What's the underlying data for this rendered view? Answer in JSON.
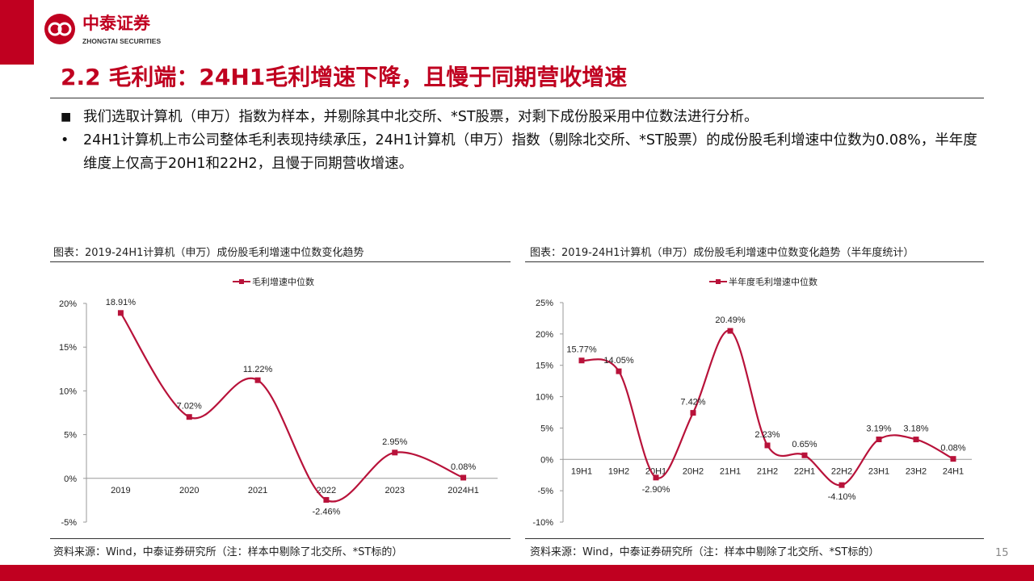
{
  "header": {
    "logo_cn": "中泰证券",
    "logo_en": "ZHONGTAI SECURITIES",
    "title": "2.2 毛利端：24H1毛利增速下降，且慢于同期营收增速"
  },
  "bullets": [
    "我们选取计算机（申万）指数为样本，并剔除其中北交所、*ST股票，对剩下成份股采用中位数法进行分析。",
    "24H1计算机上市公司整体毛利表现持续承压，24H1计算机（申万）指数（剔除北交所、*ST股票）的成份股毛利增速中位数为0.08%，半年度维度上仅高于20H1和22H2，且慢于同期营收增速。"
  ],
  "chart_data": [
    {
      "type": "line",
      "caption": "图表：2019-24H1计算机（申万）成份股毛利增速中位数变化趋势",
      "categories": [
        "2019",
        "2020",
        "2021",
        "2022",
        "2023",
        "2024H1"
      ],
      "series": [
        {
          "name": "毛利增速中位数",
          "color": "#b8123a",
          "values": [
            18.91,
            7.02,
            11.22,
            -2.46,
            2.95,
            0.08
          ],
          "value_labels": [
            "18.91%",
            "7.02%",
            "11.22%",
            "-2.46%",
            "2.95%",
            "0.08%"
          ]
        }
      ],
      "ylim": [
        -5,
        20
      ],
      "yticks": [
        {
          "value": -5,
          "label": "-5%"
        },
        {
          "value": 0,
          "label": "0%"
        },
        {
          "value": 5,
          "label": "5%"
        },
        {
          "value": 10,
          "label": "10%"
        },
        {
          "value": 15,
          "label": "15%"
        },
        {
          "value": 20,
          "label": "20%"
        }
      ],
      "source": "资料来源：Wind，中泰证券研究所（注：样本中剔除了北交所、*ST标的）"
    },
    {
      "type": "line",
      "caption": "图表：2019-24H1计算机（申万）成份股毛利增速中位数变化趋势（半年度统计）",
      "categories": [
        "19H1",
        "19H2",
        "20H1",
        "20H2",
        "21H1",
        "21H2",
        "22H1",
        "22H2",
        "23H1",
        "23H2",
        "24H1"
      ],
      "series": [
        {
          "name": "半年度毛利增速中位数",
          "color": "#b8123a",
          "values": [
            15.77,
            14.05,
            -2.9,
            7.42,
            20.49,
            2.23,
            0.65,
            -4.1,
            3.19,
            3.18,
            0.08
          ],
          "value_labels": [
            "15.77%",
            "14.05%",
            "-2.90%",
            "7.42%",
            "20.49%",
            "2.23%",
            "0.65%",
            "-4.10%",
            "3.19%",
            "3.18%",
            "0.08%"
          ]
        }
      ],
      "ylim": [
        -10,
        25
      ],
      "yticks": [
        {
          "value": -10,
          "label": "-10%"
        },
        {
          "value": -5,
          "label": "-5%"
        },
        {
          "value": 0,
          "label": "0%"
        },
        {
          "value": 5,
          "label": "5%"
        },
        {
          "value": 10,
          "label": "10%"
        },
        {
          "value": 15,
          "label": "15%"
        },
        {
          "value": 20,
          "label": "20%"
        },
        {
          "value": 25,
          "label": "25%"
        }
      ],
      "source": "资料来源：Wind，中泰证券研究所（注：样本中剔除了北交所、*ST标的）"
    }
  ],
  "page_number": "15"
}
